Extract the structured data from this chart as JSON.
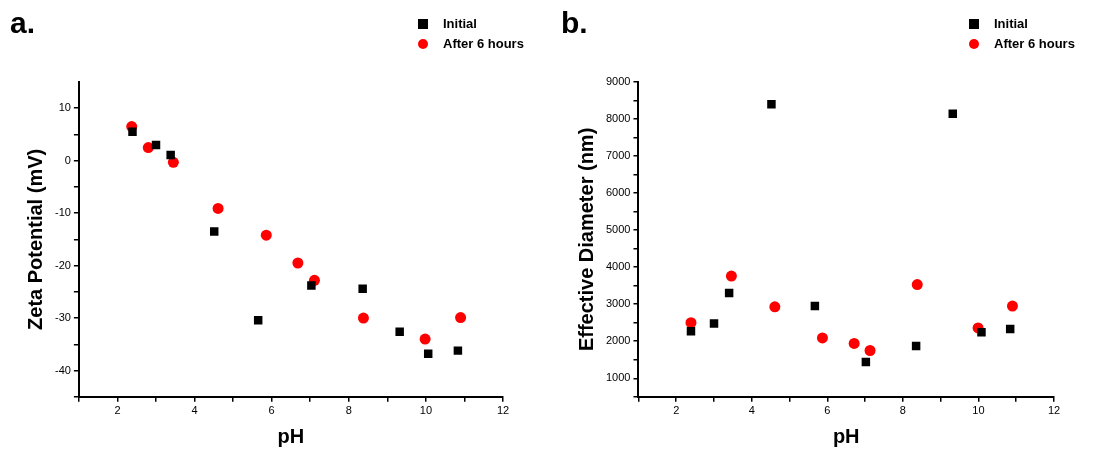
{
  "chart_data": [
    {
      "type": "scatter",
      "title": "a.",
      "xlabel": "pH",
      "ylabel": "Zeta Potential (mV)",
      "legend": "top right",
      "grid": false,
      "xlim": [
        1,
        12
      ],
      "xticks": [
        {
          "value": 1,
          "label": null
        },
        2,
        {
          "value": 3,
          "label": null
        },
        4,
        {
          "value": 5,
          "label": null
        },
        6,
        {
          "value": 7,
          "label": null
        },
        8,
        {
          "value": 9,
          "label": null
        },
        10,
        {
          "value": 11,
          "label": null
        },
        12
      ],
      "ylim": [
        -45,
        15
      ],
      "yticks": [
        {
          "value": -45,
          "label": null
        },
        -40,
        {
          "value": -35,
          "label": null
        },
        -30,
        {
          "value": -25,
          "label": null
        },
        -20,
        {
          "value": -15,
          "label": null
        },
        -10,
        {
          "value": -5,
          "label": null
        },
        0,
        {
          "value": 5,
          "label": null
        },
        10
      ],
      "series": [
        {
          "name": "Initial",
          "color": "#000000",
          "marker": "square",
          "x": [
            2.39,
            3.0,
            3.38,
            4.51,
            5.65,
            7.03,
            8.36,
            9.32,
            10.06,
            10.83
          ],
          "values": [
            5.5,
            3.0,
            1.1,
            -13.5,
            -30.4,
            -23.8,
            -24.4,
            -32.6,
            -36.8,
            -36.2
          ]
        },
        {
          "name": "After 6 hours",
          "color": "#ff0000",
          "marker": "circle",
          "x": [
            2.37,
            2.8,
            3.45,
            4.61,
            5.86,
            6.68,
            7.11,
            8.38,
            9.98,
            10.9
          ],
          "values": [
            6.5,
            2.5,
            -0.3,
            -9.1,
            -14.2,
            -19.5,
            -22.8,
            -30.0,
            -34.0,
            -29.9
          ]
        }
      ]
    },
    {
      "type": "scatter",
      "title": "b.",
      "xlabel": "pH",
      "ylabel": "Effective Diameter (nm)",
      "legend": "top right",
      "grid": false,
      "xlim": [
        1,
        12
      ],
      "xticks": [
        {
          "value": 1,
          "label": null
        },
        2,
        {
          "value": 3,
          "label": null
        },
        4,
        {
          "value": 5,
          "label": null
        },
        6,
        {
          "value": 7,
          "label": null
        },
        8,
        {
          "value": 9,
          "label": null
        },
        10,
        {
          "value": 11,
          "label": null
        },
        12
      ],
      "ylim": [
        500,
        9000
      ],
      "yticks": [
        {
          "value": 500,
          "label": null
        },
        1000,
        {
          "value": 1500,
          "label": null
        },
        2000,
        {
          "value": 2500,
          "label": null
        },
        3000,
        {
          "value": 3500,
          "label": null
        },
        4000,
        {
          "value": 4500,
          "label": null
        },
        5000,
        {
          "value": 5500,
          "label": null
        },
        6000,
        {
          "value": 6500,
          "label": null
        },
        7000,
        {
          "value": 7500,
          "label": null
        },
        8000,
        {
          "value": 8500,
          "label": null
        },
        9000
      ],
      "series": [
        {
          "name": "Initial",
          "color": "#000000",
          "marker": "square",
          "x": [
            2.39,
            3.0,
            3.4,
            4.52,
            5.67,
            7.02,
            8.35,
            9.32,
            10.08,
            10.84
          ],
          "values": [
            2270,
            2480,
            3300,
            8400,
            2950,
            1440,
            1870,
            8140,
            2240,
            2330
          ]
        },
        {
          "name": "After 6 hours",
          "color": "#ff0000",
          "marker": "circle",
          "x": [
            2.39,
            3.46,
            4.61,
            5.87,
            6.71,
            7.13,
            8.38,
            9.99,
            10.9
          ],
          "values": [
            2500,
            3760,
            2930,
            2090,
            1940,
            1750,
            3530,
            2360,
            2950
          ]
        }
      ]
    }
  ]
}
